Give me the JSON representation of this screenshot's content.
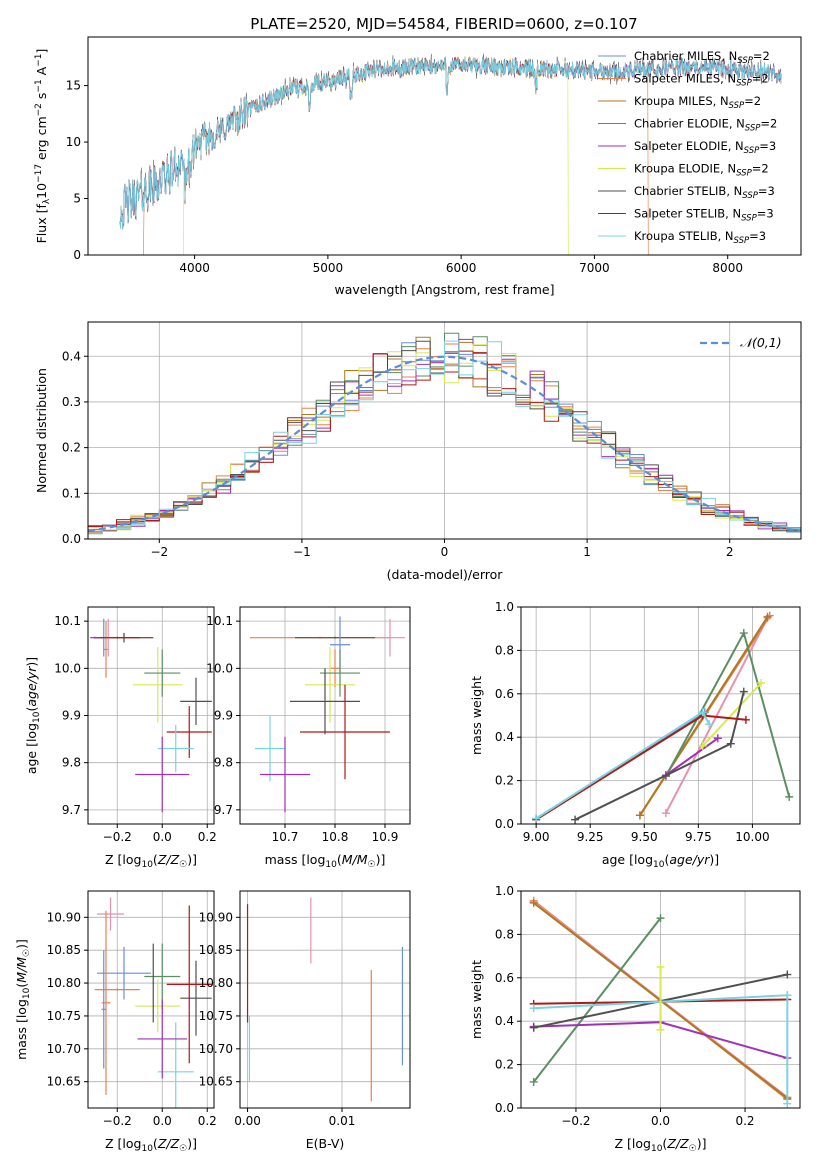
{
  "title": "PLATE=2520, MJD=54584, FIBERID=0600, z=0.107",
  "chart_data": [
    {
      "id": "spectrum",
      "type": "line",
      "xlabel": "wavelength [Angstrom, rest frame]",
      "ylabel": "Flux [f_λ 10^-17 erg cm^-2 s^-1 A^-1]",
      "xlim": [
        3200,
        8550
      ],
      "ylim": [
        0,
        19.3
      ],
      "xticks": [
        4000,
        5000,
        6000,
        7000,
        8000
      ],
      "yticks": [
        0,
        5,
        10,
        15
      ],
      "legend": "top-right",
      "series": [
        {
          "name": "Chabrier MILES, N_SSP=2",
          "color": "#6a8fd8"
        },
        {
          "name": "Salpeter MILES, N_SSP=2",
          "color": "#e88050"
        },
        {
          "name": "Kroupa MILES, N_SSP=2",
          "color": "#b07820"
        },
        {
          "name": "Chabrier ELODIE, N_SSP=2",
          "color": "#5a8f62"
        },
        {
          "name": "Salpeter ELODIE, N_SSP=3",
          "color": "#a030b8"
        },
        {
          "name": "Kroupa ELODIE, N_SSP=2",
          "color": "#d8e850"
        },
        {
          "name": "Chabrier STELIB, N_SSP=3",
          "color": "#505050"
        },
        {
          "name": "Salpeter STELIB, N_SSP=3",
          "color": "#b01818"
        },
        {
          "name": "Kroupa STELIB, N_SSP=3",
          "color": "#78d4e0"
        }
      ],
      "continuum": {
        "x": [
          3450,
          3600,
          3800,
          4000,
          4200,
          4400,
          4700,
          5000,
          5300,
          5600,
          6000,
          6400,
          6800,
          7200,
          7600,
          8000,
          8400
        ],
        "y": [
          4.0,
          5.5,
          7.0,
          9.8,
          11.0,
          12.8,
          14.6,
          15.3,
          16.3,
          16.6,
          16.8,
          16.6,
          16.4,
          16.2,
          16.6,
          16.5,
          16.0
        ]
      },
      "dropouts": [
        {
          "series": "Salpeter MILES, N_SSP=2",
          "x_start": 3620,
          "x_end": 7400
        },
        {
          "series": "Kroupa ELODIE, N_SSP=2",
          "x_start": 3920,
          "x_end": 6800
        }
      ]
    },
    {
      "id": "residual-histogram",
      "type": "histogram",
      "xlabel": "(data-model)/error",
      "ylabel": "Normed distribution",
      "xlim": [
        -2.5,
        2.5
      ],
      "ylim": [
        0,
        0.475
      ],
      "xticks": [
        -2,
        -1,
        0,
        1,
        2
      ],
      "yticks": [
        0.0,
        0.1,
        0.2,
        0.3,
        0.4
      ],
      "grid": true,
      "legend": "top-right",
      "reference": {
        "name": "𝒩(0,1)",
        "color": "#5b8ed6",
        "style": "dashed"
      },
      "bin_width": 0.1
    },
    {
      "id": "z-age",
      "type": "scatter",
      "xlabel": "Z [log10(Z/Z☉)]",
      "ylabel": "age  [log10(age/yr)]",
      "xlim": [
        -0.33,
        0.23
      ],
      "ylim": [
        9.67,
        10.13
      ],
      "xticks": [
        -0.2,
        0.0,
        0.2
      ],
      "yticks": [
        9.7,
        9.8,
        9.9,
        10.0,
        10.1
      ],
      "grid": true,
      "points": [
        {
          "x": -0.17,
          "y": 10.065,
          "xerr": 0.13,
          "yerr": 0.01,
          "color": "#e88050"
        },
        {
          "x": -0.17,
          "y": 10.065,
          "xerr": 0.13,
          "yerr": 0.01,
          "color": "#505050"
        },
        {
          "x": -0.26,
          "y": 10.065,
          "xerr": 0.02,
          "yerr": 0.04,
          "color": "#6a8fd8"
        },
        {
          "x": -0.25,
          "y": 10.04,
          "xerr": 0.01,
          "yerr": 0.06,
          "color": "#e88050"
        },
        {
          "x": -0.24,
          "y": 10.065,
          "xerr": 0.01,
          "yerr": 0.04,
          "color": "#e890b0"
        },
        {
          "x": -0.2,
          "y": 10.065,
          "xerr": 0.1,
          "yerr": 0.002,
          "color": "#b01818"
        },
        {
          "x": -0.3,
          "y": 10.065,
          "xerr": 0.02,
          "yerr": 0.002,
          "color": "#a030b8"
        },
        {
          "x": -0.02,
          "y": 9.965,
          "xerr": 0.11,
          "yerr": 0.08,
          "color": "#d8e850"
        },
        {
          "x": 0.0,
          "y": 9.99,
          "xerr": 0.08,
          "yerr": 0.05,
          "color": "#5a8f62"
        },
        {
          "x": 0.15,
          "y": 9.93,
          "xerr": 0.07,
          "yerr": 0.05,
          "color": "#505050"
        },
        {
          "x": 0.12,
          "y": 9.865,
          "xerr": 0.1,
          "yerr": 0.055,
          "color": "#b01818"
        },
        {
          "x": 0.06,
          "y": 9.83,
          "xerr": 0.08,
          "yerr": 0.05,
          "color": "#78d4e0"
        },
        {
          "x": 0.0,
          "y": 9.775,
          "xerr": 0.12,
          "yerr": 0.08,
          "color": "#a030b8"
        }
      ]
    },
    {
      "id": "mass-age",
      "type": "scatter",
      "xlabel": "mass [log10(M/M☉)]",
      "ylabel": "",
      "xlim": [
        10.61,
        10.95
      ],
      "ylim": [
        9.67,
        10.13
      ],
      "xticks": [
        10.7,
        10.8,
        10.9
      ],
      "yticks": [
        9.7,
        9.8,
        9.9,
        10.0,
        10.1
      ],
      "grid": true,
      "points": [
        {
          "x": 10.77,
          "y": 10.065,
          "xerr": 0.14,
          "yerr": 0.002,
          "color": "#e88050"
        },
        {
          "x": 10.8,
          "y": 10.065,
          "xerr": 0.08,
          "yerr": 0.002,
          "color": "#505050"
        },
        {
          "x": 10.81,
          "y": 10.05,
          "xerr": 0.02,
          "yerr": 0.06,
          "color": "#6a8fd8"
        },
        {
          "x": 10.8,
          "y": 10.0,
          "xerr": 0.01,
          "yerr": 0.04,
          "color": "#e88050"
        },
        {
          "x": 10.91,
          "y": 10.065,
          "xerr": 0.03,
          "yerr": 0.04,
          "color": "#e890b0"
        },
        {
          "x": 10.79,
          "y": 9.965,
          "xerr": 0.05,
          "yerr": 0.08,
          "color": "#d8e850"
        },
        {
          "x": 10.81,
          "y": 9.99,
          "xerr": 0.04,
          "yerr": 0.05,
          "color": "#5a8f62"
        },
        {
          "x": 10.78,
          "y": 9.93,
          "xerr": 0.07,
          "yerr": 0.07,
          "color": "#505050"
        },
        {
          "x": 10.82,
          "y": 9.865,
          "xerr": 0.09,
          "yerr": 0.1,
          "color": "#b01818"
        },
        {
          "x": 10.67,
          "y": 9.83,
          "xerr": 0.03,
          "yerr": 0.07,
          "color": "#78d4e0"
        },
        {
          "x": 10.7,
          "y": 9.775,
          "xerr": 0.05,
          "yerr": 0.08,
          "color": "#a030b8"
        }
      ]
    },
    {
      "id": "age-weight",
      "type": "line",
      "xlabel": "age  [log10(age/yr)]",
      "ylabel": "mass weight",
      "xlim": [
        8.93,
        10.22
      ],
      "ylim": [
        0,
        1
      ],
      "xticks": [
        9.0,
        9.25,
        9.5,
        9.75,
        10.0
      ],
      "yticks": [
        0.0,
        0.2,
        0.4,
        0.6,
        0.8,
        1.0
      ],
      "grid": true,
      "series": [
        {
          "color": "#6a8fd8",
          "x": [
            9.0,
            9.78
          ],
          "y": [
            0.025,
            0.515
          ]
        },
        {
          "color": "#e890b0",
          "x": [
            9.6,
            10.07
          ],
          "y": [
            0.05,
            0.95
          ]
        },
        {
          "color": "#e88050",
          "x": [
            9.48,
            10.08
          ],
          "y": [
            0.04,
            0.96
          ]
        },
        {
          "color": "#b07820",
          "x": [
            9.48,
            10.07
          ],
          "y": [
            0.04,
            0.955
          ]
        },
        {
          "color": "#5a8f62",
          "x": [
            9.6,
            9.96,
            10.17
          ],
          "y": [
            0.22,
            0.88,
            0.125
          ]
        },
        {
          "color": "#a030b8",
          "x": [
            9.6,
            9.84
          ],
          "y": [
            0.225,
            0.395
          ]
        },
        {
          "color": "#d8e850",
          "x": [
            9.77,
            10.04
          ],
          "y": [
            0.36,
            0.65
          ]
        },
        {
          "color": "#505050",
          "x": [
            9.18,
            9.9,
            9.96
          ],
          "y": [
            0.02,
            0.37,
            0.61
          ]
        },
        {
          "color": "#b01818",
          "x": [
            9.0,
            9.77,
            9.97
          ],
          "y": [
            0.02,
            0.5,
            0.48
          ]
        },
        {
          "color": "#78d4e0",
          "x": [
            9.0,
            9.77,
            9.8
          ],
          "y": [
            0.025,
            0.515,
            0.46
          ]
        }
      ]
    },
    {
      "id": "z-mass",
      "type": "scatter",
      "xlabel": "Z [log10(Z/Z☉)]",
      "ylabel": "mass [log10(M/M☉)]",
      "xlim": [
        -0.33,
        0.23
      ],
      "ylim": [
        10.61,
        10.94
      ],
      "xticks": [
        -0.2,
        0.0,
        0.2
      ],
      "yticks": [
        10.65,
        10.7,
        10.75,
        10.8,
        10.85,
        10.9
      ],
      "grid": true,
      "points": [
        {
          "x": -0.23,
          "y": 10.905,
          "xerr": 0.06,
          "yerr": 0.025,
          "color": "#e890b0"
        },
        {
          "x": -0.17,
          "y": 10.815,
          "xerr": 0.12,
          "yerr": 0.04,
          "color": "#6a8fd8"
        },
        {
          "x": -0.25,
          "y": 10.77,
          "xerr": 0.02,
          "yerr": 0.14,
          "color": "#e88050"
        },
        {
          "x": -0.2,
          "y": 10.79,
          "xerr": 0.1,
          "yerr": 0.002,
          "color": "#e88050"
        },
        {
          "x": -0.26,
          "y": 10.76,
          "xerr": 0.01,
          "yerr": 0.09,
          "color": "#6a8fd8"
        },
        {
          "x": -0.02,
          "y": 10.765,
          "xerr": 0.1,
          "yerr": 0.04,
          "color": "#d8e850"
        },
        {
          "x": 0.0,
          "y": 10.81,
          "xerr": 0.08,
          "yerr": 0.05,
          "color": "#5a8f62"
        },
        {
          "x": 0.15,
          "y": 10.777,
          "xerr": 0.07,
          "yerr": 0.057,
          "color": "#505050"
        },
        {
          "x": 0.12,
          "y": 10.798,
          "xerr": 0.1,
          "yerr": 0.12,
          "color": "#b01818"
        },
        {
          "x": 0.06,
          "y": 10.665,
          "xerr": 0.08,
          "yerr": 0.075,
          "color": "#78d4e0"
        },
        {
          "x": 0.0,
          "y": 10.715,
          "xerr": 0.11,
          "yerr": 0.06,
          "color": "#a030b8"
        },
        {
          "x": -0.04,
          "y": 10.8,
          "xerr": 0.002,
          "yerr": 0.06,
          "color": "#505050"
        }
      ]
    },
    {
      "id": "ebv-mass",
      "type": "scatter",
      "xlabel": "E(B-V)",
      "ylabel": "",
      "xlim": [
        -0.0008,
        0.0172
      ],
      "ylim": [
        10.61,
        10.94
      ],
      "xticks": [
        0.0,
        0.01
      ],
      "yticks": [
        10.65,
        10.7,
        10.75,
        10.8,
        10.85,
        10.9
      ],
      "grid": true,
      "points": [
        {
          "x": 0.0,
          "y": 10.83,
          "xerr": 0,
          "yerr": 0.09,
          "color": "#b01818"
        },
        {
          "x": 0.0002,
          "y": 10.7,
          "xerr": 0,
          "yerr": 0.05,
          "color": "#78d4e0"
        },
        {
          "x": 0.0067,
          "y": 10.88,
          "xerr": 0,
          "yerr": 0.05,
          "color": "#e890b0"
        },
        {
          "x": 0.0131,
          "y": 10.72,
          "xerr": 0,
          "yerr": 0.1,
          "color": "#e88050"
        },
        {
          "x": 0.0164,
          "y": 10.765,
          "xerr": 0,
          "yerr": 0.09,
          "color": "#6a8fd8"
        }
      ]
    },
    {
      "id": "z-weight",
      "type": "line",
      "xlabel": "Z [log10(Z/Z☉)]",
      "ylabel": "mass weight",
      "xlim": [
        -0.33,
        0.33
      ],
      "ylim": [
        0,
        1
      ],
      "xticks": [
        -0.2,
        0.0,
        0.2
      ],
      "yticks": [
        0.0,
        0.2,
        0.4,
        0.6,
        0.8,
        1.0
      ],
      "grid": true,
      "series": [
        {
          "color": "#e88050",
          "x": [
            -0.3,
            0.3
          ],
          "y": [
            0.955,
            0.04
          ]
        },
        {
          "color": "#e890b0",
          "x": [
            -0.3,
            0.3
          ],
          "y": [
            0.95,
            0.05
          ]
        },
        {
          "color": "#b07820",
          "x": [
            -0.3,
            0.3
          ],
          "y": [
            0.945,
            0.045
          ]
        },
        {
          "color": "#5a8f62",
          "x": [
            -0.3,
            0.0
          ],
          "y": [
            0.12,
            0.875
          ]
        },
        {
          "color": "#a030b8",
          "x": [
            -0.3,
            0.0,
            0.3
          ],
          "y": [
            0.375,
            0.395,
            0.23
          ]
        },
        {
          "color": "#505050",
          "x": [
            -0.3,
            0.3
          ],
          "y": [
            0.37,
            0.615
          ]
        },
        {
          "color": "#b01818",
          "x": [
            -0.3,
            0.3
          ],
          "y": [
            0.48,
            0.5
          ]
        },
        {
          "color": "#78d4e0",
          "x": [
            -0.3,
            0.3
          ],
          "y": [
            0.46,
            0.52
          ]
        },
        {
          "color": "#d8e850",
          "x": [
            0.0,
            0.0
          ],
          "y": [
            0.36,
            0.65
          ]
        },
        {
          "color": "#78d4e0",
          "x": [
            0.3,
            0.3
          ],
          "y": [
            0.02,
            0.52
          ]
        }
      ]
    }
  ]
}
